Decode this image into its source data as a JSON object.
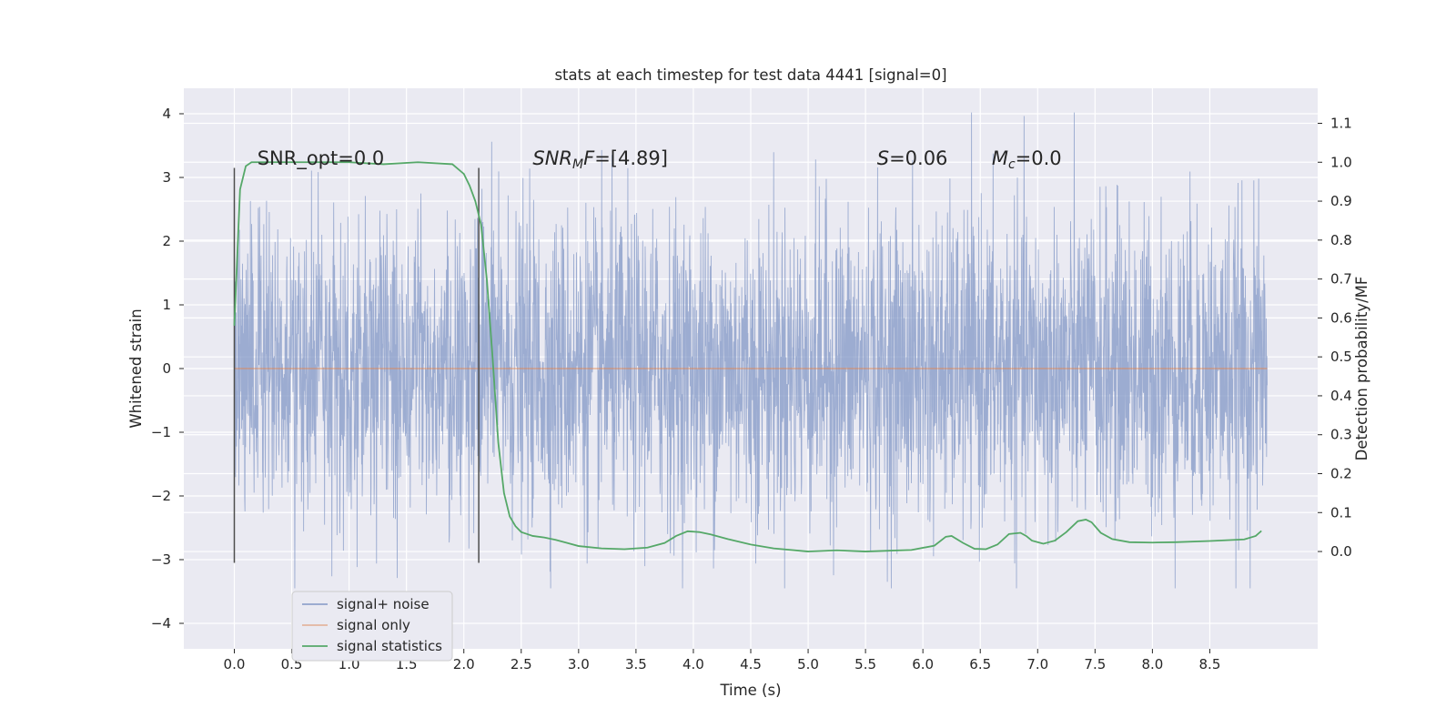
{
  "chart_data": {
    "type": "line",
    "title": "stats at each timestep for test data 4441 [signal=0]",
    "xlabel": "Time (s)",
    "ylabel": "Whitened strain",
    "ylabel_right": "Detection probability/MF",
    "xlim": [
      -0.44,
      9.44
    ],
    "ylim": [
      -4.4,
      4.4
    ],
    "ylim_right": [
      -0.25,
      1.19
    ],
    "x_ticks": [
      0.0,
      0.5,
      1.0,
      1.5,
      2.0,
      2.5,
      3.0,
      3.5,
      4.0,
      4.5,
      5.0,
      5.5,
      6.0,
      6.5,
      7.0,
      7.5,
      8.0,
      8.5
    ],
    "x_tick_labels": [
      "0.0",
      "0.5",
      "1.0",
      "1.5",
      "2.0",
      "2.5",
      "3.0",
      "3.5",
      "4.0",
      "4.5",
      "5.0",
      "5.5",
      "6.0",
      "6.5",
      "7.0",
      "7.5",
      "8.0",
      "8.5"
    ],
    "y_ticks": [
      -4,
      -3,
      -2,
      -1,
      0,
      1,
      2,
      3,
      4
    ],
    "y_tick_labels": [
      "−4",
      "−3",
      "−2",
      "−1",
      "0",
      "1",
      "2",
      "3",
      "4"
    ],
    "y_right_ticks": [
      0.0,
      0.1,
      0.2,
      0.3,
      0.4,
      0.5,
      0.6,
      0.7,
      0.8,
      0.9,
      1.0,
      1.1
    ],
    "y_right_tick_labels": [
      "0.0",
      "0.1",
      "0.2",
      "0.3",
      "0.4",
      "0.5",
      "0.6",
      "0.7",
      "0.8",
      "0.9",
      "1.0",
      "1.1"
    ],
    "grid": true,
    "legend_position": "lower-left",
    "series": [
      {
        "name": "signal+ noise",
        "color": "#8197c6",
        "kind": "noise",
        "x_range": [
          0.0,
          9.0
        ],
        "envelope": {
          "typical_abs": 1.2,
          "min": -3.45,
          "max": 4.02
        }
      },
      {
        "name": "signal only",
        "color": "#dd8452",
        "kind": "line",
        "x": [
          0.0,
          9.0
        ],
        "values": [
          0.0,
          0.0
        ]
      },
      {
        "name": "signal statistics",
        "color": "#55a868",
        "kind": "line",
        "axis": "right",
        "x": [
          0.0,
          0.05,
          0.1,
          0.15,
          0.2,
          0.3,
          0.5,
          0.8,
          1.0,
          1.3,
          1.6,
          1.9,
          2.0,
          2.05,
          2.1,
          2.15,
          2.2,
          2.25,
          2.3,
          2.35,
          2.4,
          2.45,
          2.5,
          2.55,
          2.6,
          2.7,
          2.8,
          2.9,
          3.0,
          3.2,
          3.4,
          3.6,
          3.75,
          3.85,
          3.95,
          4.05,
          4.15,
          4.3,
          4.5,
          4.7,
          5.0,
          5.25,
          5.5,
          5.7,
          5.9,
          6.1,
          6.2,
          6.25,
          6.35,
          6.45,
          6.55,
          6.65,
          6.75,
          6.85,
          6.9,
          6.95,
          7.05,
          7.15,
          7.25,
          7.35,
          7.42,
          7.47,
          7.55,
          7.65,
          7.8,
          8.0,
          8.2,
          8.5,
          8.8,
          8.9,
          8.95
        ],
        "values": [
          0.58,
          0.93,
          0.99,
          1.0,
          1.0,
          1.0,
          1.0,
          1.0,
          1.0,
          0.995,
          1.0,
          0.995,
          0.97,
          0.94,
          0.9,
          0.84,
          0.7,
          0.5,
          0.28,
          0.15,
          0.09,
          0.065,
          0.05,
          0.045,
          0.04,
          0.036,
          0.03,
          0.022,
          0.014,
          0.008,
          0.006,
          0.01,
          0.022,
          0.04,
          0.052,
          0.05,
          0.044,
          0.032,
          0.018,
          0.008,
          0.0,
          0.003,
          0.0,
          0.002,
          0.004,
          0.015,
          0.038,
          0.04,
          0.022,
          0.007,
          0.006,
          0.018,
          0.045,
          0.048,
          0.04,
          0.028,
          0.02,
          0.028,
          0.05,
          0.078,
          0.082,
          0.075,
          0.048,
          0.032,
          0.024,
          0.023,
          0.024,
          0.027,
          0.031,
          0.04,
          0.053
        ]
      }
    ],
    "vertical_lines": [
      {
        "x": 0.0,
        "ymin": -3.05,
        "ymax": 3.15,
        "color": "#4d4d4d"
      },
      {
        "x": 2.13,
        "ymin": -3.05,
        "ymax": 3.15,
        "color": "#4d4d4d"
      }
    ],
    "annotations": [
      {
        "text": "SNR_opt=0.0",
        "x": 0.2,
        "y": 3.2
      },
      {
        "parts": [
          {
            "t": "SNR",
            "italic": true
          },
          {
            "t": "M",
            "italic": true,
            "sub": true
          },
          {
            "t": "F",
            "italic": true
          },
          {
            "t": "=[4.89]",
            "italic": false
          }
        ],
        "x": 2.6,
        "y": 3.2
      },
      {
        "parts": [
          {
            "t": "S",
            "italic": true
          },
          {
            "t": "=0.06",
            "italic": false
          }
        ],
        "x": 5.6,
        "y": 3.2
      },
      {
        "parts": [
          {
            "t": "M",
            "italic": true
          },
          {
            "t": "c",
            "italic": true,
            "sub": true
          },
          {
            "t": "=0.0",
            "italic": false
          }
        ],
        "x": 6.6,
        "y": 3.2
      }
    ],
    "colors": {
      "background": "#eaeaf2",
      "grid": "#ffffff",
      "noise": "#8197c6",
      "signal": "#dd8452",
      "statistic": "#55a868",
      "marker": "#4d4d4d"
    }
  }
}
